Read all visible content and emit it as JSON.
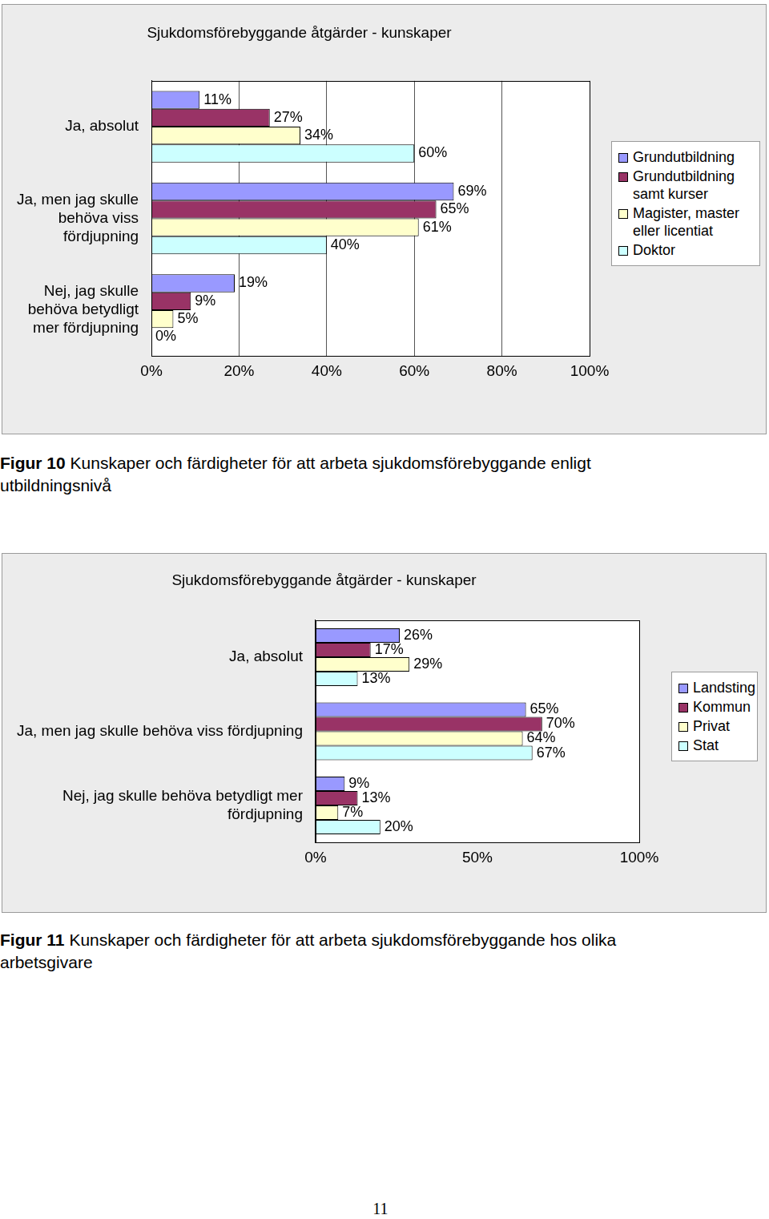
{
  "chart_data": [
    {
      "type": "bar",
      "title": "Sjukdomsförebyggande åtgärder - kunskaper",
      "caption_label": "Figur 10",
      "caption": "Kunskaper och färdigheter för att arbeta sjukdomsförebyggande enligt utbildningsnivå",
      "orientation": "horizontal",
      "categories": [
        "Ja, absolut",
        "Ja, men jag skulle behöva viss fördjupning",
        "Nej, jag skulle behöva betydligt mer fördjupning"
      ],
      "series": [
        {
          "name": "Grundutbildning",
          "color": "#9999ff",
          "values": [
            11,
            69,
            19
          ],
          "value_labels": [
            "11%",
            "69%",
            "19%"
          ]
        },
        {
          "name": "Grundutbildning samt kurser",
          "color": "#993366",
          "values": [
            27,
            65,
            9
          ],
          "value_labels": [
            "27%",
            "65%",
            "9%"
          ]
        },
        {
          "name": "Magister, master eller licentiat",
          "color": "#ffffcc",
          "values": [
            34,
            61,
            5
          ],
          "value_labels": [
            "34%",
            "61%",
            "5%"
          ]
        },
        {
          "name": "Doktor",
          "color": "#ccffff",
          "values": [
            60,
            40,
            0
          ],
          "value_labels": [
            "60%",
            "40%",
            "0%"
          ]
        }
      ],
      "xlim": [
        0,
        100
      ],
      "xticks": [
        {
          "value": 0,
          "label": "0%"
        },
        {
          "value": 20,
          "label": "20%"
        },
        {
          "value": 40,
          "label": "40%"
        },
        {
          "value": 60,
          "label": "60%"
        },
        {
          "value": 80,
          "label": "80%"
        },
        {
          "value": 100,
          "label": "100%"
        }
      ],
      "grid": true,
      "legend": "right",
      "data_labels": true
    },
    {
      "type": "bar",
      "title": "Sjukdomsförebyggande åtgärder - kunskaper",
      "caption_label": "Figur 11",
      "caption": "Kunskaper och färdigheter för att arbeta sjukdomsförebyggande hos olika arbetsgivare",
      "orientation": "horizontal",
      "categories": [
        "Ja, absolut",
        "Ja, men jag skulle behöva viss fördjupning",
        "Nej, jag skulle behöva betydligt mer fördjupning"
      ],
      "series": [
        {
          "name": "Landsting",
          "color": "#9999ff",
          "values": [
            26,
            65,
            9
          ],
          "value_labels": [
            "26%",
            "65%",
            "9%"
          ]
        },
        {
          "name": "Kommun",
          "color": "#993366",
          "values": [
            17,
            70,
            13
          ],
          "value_labels": [
            "17%",
            "70%",
            "13%"
          ]
        },
        {
          "name": "Privat",
          "color": "#ffffcc",
          "values": [
            29,
            64,
            7
          ],
          "value_labels": [
            "29%",
            "64%",
            "7%"
          ]
        },
        {
          "name": "Stat",
          "color": "#ccffff",
          "values": [
            13,
            67,
            20
          ],
          "value_labels": [
            "13%",
            "67%",
            "20%"
          ]
        }
      ],
      "xlim": [
        0,
        100
      ],
      "xticks": [
        {
          "value": 0,
          "label": "0%"
        },
        {
          "value": 50,
          "label": "50%"
        },
        {
          "value": 100,
          "label": "100%"
        }
      ],
      "grid": false,
      "legend": "right",
      "data_labels": true
    }
  ],
  "page_number": "11"
}
